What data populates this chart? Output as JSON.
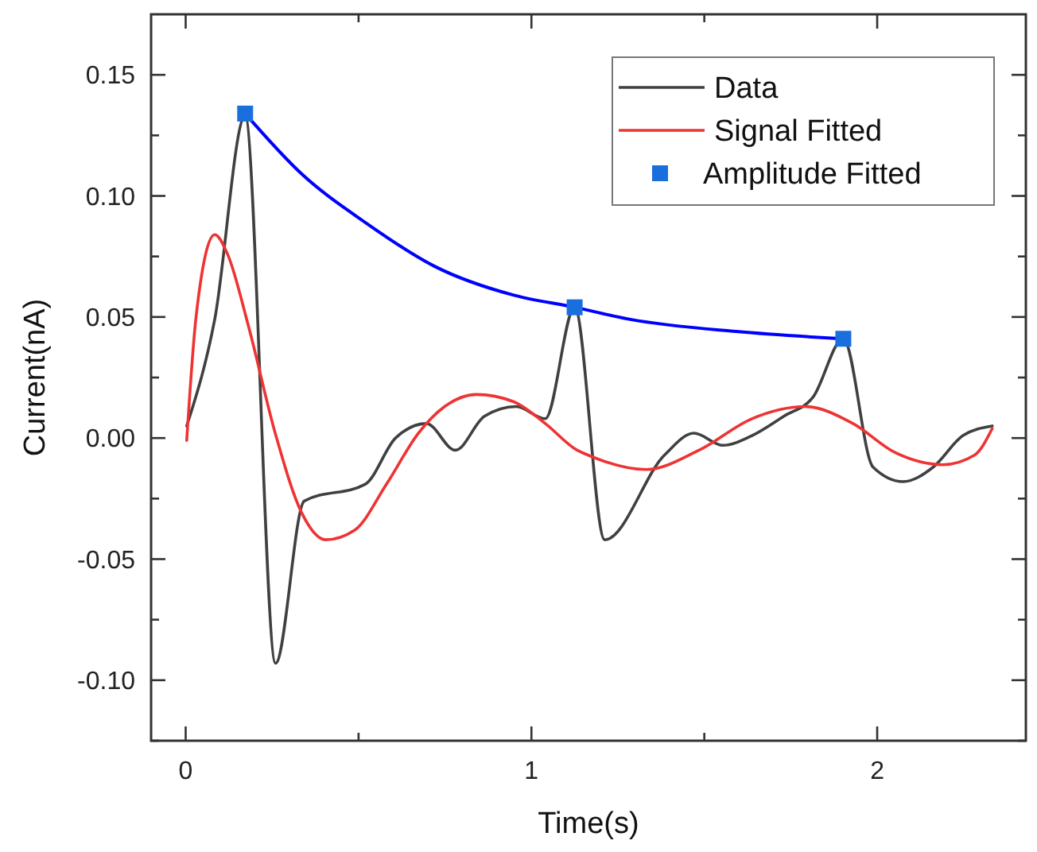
{
  "chart_data": {
    "type": "line",
    "xlabel": "Time(s)",
    "ylabel": "Current(nA)",
    "xlim": [
      -0.1,
      2.43
    ],
    "ylim": [
      -0.125,
      0.175
    ],
    "xticks": [
      0,
      {
        "value": 0.5,
        "label": null
      },
      1,
      {
        "value": 1.5,
        "label": null
      },
      2
    ],
    "yticks": [
      {
        "value": -0.125,
        "label": null
      },
      {
        "value": -0.1,
        "label": "-0.10"
      },
      {
        "value": -0.075,
        "label": null
      },
      {
        "value": -0.05,
        "label": "-0.05"
      },
      {
        "value": -0.025,
        "label": null
      },
      {
        "value": 0,
        "label": "0.00"
      },
      {
        "value": 0.025,
        "label": null
      },
      {
        "value": 0.05,
        "label": "0.05"
      },
      {
        "value": 0.075,
        "label": null
      },
      {
        "value": 0.1,
        "label": "0.10"
      },
      {
        "value": 0.125,
        "label": null
      },
      {
        "value": 0.15,
        "label": "0.15"
      }
    ],
    "grid": false,
    "legend": "top right",
    "series": [
      {
        "name": "Data",
        "color": "#404040",
        "x": [
          0.003,
          0.084,
          0.172,
          0.26,
          0.343,
          0.52,
          0.607,
          0.696,
          0.78,
          0.864,
          0.956,
          1.04,
          1.125,
          1.212,
          1.385,
          1.47,
          1.554,
          1.638,
          1.73,
          1.815,
          1.902,
          1.988,
          2.075,
          2.162,
          2.248,
          2.333
        ],
        "values": [
          0.005,
          0.049,
          0.133,
          -0.093,
          -0.026,
          -0.019,
          0.0,
          0.006,
          -0.005,
          0.009,
          0.013,
          0.008,
          0.054,
          -0.042,
          -0.007,
          0.002,
          -0.003,
          0.001,
          0.009,
          0.017,
          0.041,
          -0.012,
          -0.018,
          -0.012,
          0.001,
          0.005
        ]
      },
      {
        "name": "Signal Fitted",
        "color": "#ee3333",
        "x": [
          0.003,
          0.03,
          0.084,
          0.121,
          0.182,
          0.259,
          0.336,
          0.405,
          0.489,
          0.581,
          0.673,
          0.749,
          0.841,
          0.949,
          1.04,
          1.132,
          1.163,
          1.332,
          1.485,
          1.638,
          1.792,
          1.93,
          2.052,
          2.19,
          2.282,
          2.333
        ],
        "values": [
          -0.001,
          0.05,
          0.084,
          0.076,
          0.046,
          0.002,
          -0.031,
          -0.042,
          -0.038,
          -0.019,
          0.002,
          0.013,
          0.018,
          0.015,
          0.006,
          -0.005,
          -0.007,
          -0.013,
          -0.005,
          0.008,
          0.013,
          0.006,
          -0.006,
          -0.011,
          -0.007,
          0.004
        ]
      },
      {
        "color": "#0000ff",
        "x": [
          0.172,
          0.336,
          0.52,
          0.719,
          0.949,
          1.125,
          1.286,
          1.592,
          1.902
        ],
        "values": [
          0.134,
          0.109,
          0.089,
          0.071,
          0.059,
          0.054,
          0.049,
          0.044,
          0.041
        ]
      },
      {
        "name": "Amplitude Fitted",
        "type": "scatter",
        "marker": "square",
        "color": "#1a6fdf",
        "x": [
          0.172,
          1.125,
          1.902
        ],
        "values": [
          0.134,
          0.054,
          0.041
        ]
      }
    ]
  }
}
